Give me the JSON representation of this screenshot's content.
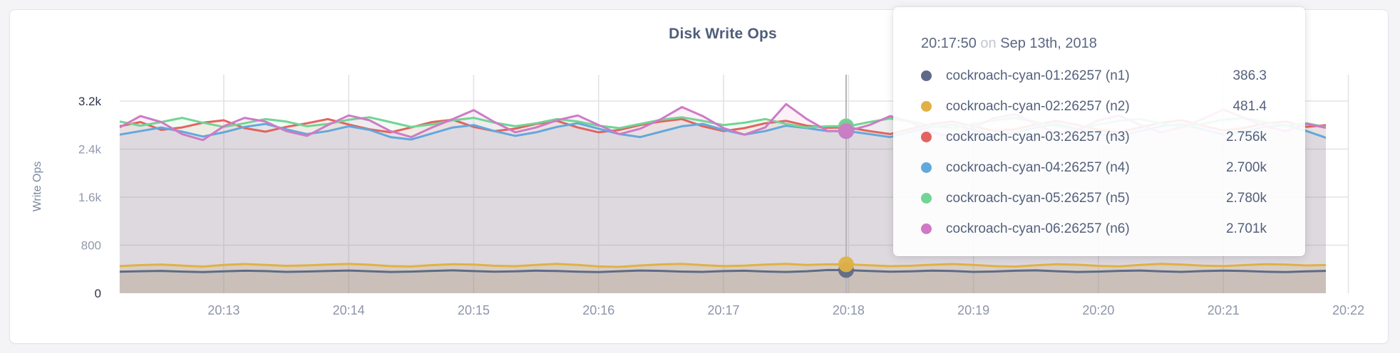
{
  "accent_colors": {
    "page_bg": "#f4f4f6",
    "card_bg": "#ffffff",
    "card_border": "#e5e5e9",
    "title_text": "#4f5e7b",
    "axis_tick_mid": "#9199ac",
    "axis_tick_emph": "#2d3347",
    "x_tick_text": "#8d95a9",
    "axis_title_text": "#7b87a1",
    "gridline": "#e3e3e7",
    "hover_guideline": "#b5b5ba",
    "tooltip_text": "#54607c",
    "tooltip_muted": "#c3c7cf"
  },
  "tooltip": {
    "time": "20:17:50",
    "on_word": "on",
    "date": "Sep 13th, 2018",
    "values_display": [
      "386.3",
      "481.4",
      "2.756k",
      "2.700k",
      "2.780k",
      "2.701k"
    ]
  },
  "chart_data": {
    "type": "line",
    "title": "Disk Write Ops",
    "xlabel": "",
    "ylabel": "Write Ops",
    "ylim": [
      0,
      3200
    ],
    "grid": true,
    "x_start": "20:12:10",
    "x_end": "20:21:50",
    "x_step_seconds": 10,
    "x_ticks": [
      "20:13",
      "20:14",
      "20:15",
      "20:16",
      "20:17",
      "20:18",
      "20:19",
      "20:20",
      "20:21",
      "20:22"
    ],
    "y_ticks": [
      {
        "label": "0",
        "value": 0,
        "emph": true
      },
      {
        "label": "800",
        "value": 800,
        "emph": false
      },
      {
        "label": "1.6k",
        "value": 1600,
        "emph": false
      },
      {
        "label": "2.4k",
        "value": 2400,
        "emph": false
      },
      {
        "label": "3.2k",
        "value": 3200,
        "emph": true
      }
    ],
    "hover_time": "20:17:50",
    "hover_values": [
      386.3,
      481.4,
      2756,
      2700,
      2780,
      2701
    ],
    "series": [
      {
        "name": "cockroach-cyan-01:26257 (n1)",
        "color": "#5e6a87",
        "fill_opacity": 0.18,
        "values": [
          358,
          366,
          372,
          360,
          352,
          364,
          374,
          368,
          356,
          362,
          370,
          378,
          366,
          354,
          360,
          372,
          380,
          368,
          358,
          364,
          376,
          370,
          358,
          352,
          366,
          378,
          372,
          360,
          356,
          368,
          374,
          362,
          354,
          366,
          386.3,
          384,
          370,
          358,
          364,
          376,
          370,
          356,
          362,
          374,
          380,
          366,
          354,
          360,
          372,
          378,
          364,
          356,
          368,
          376,
          370,
          358,
          352,
          364,
          372
        ]
      },
      {
        "name": "cockroach-cyan-02:26257 (n2)",
        "color": "#e0b145",
        "fill_opacity": 0.22,
        "values": [
          452,
          468,
          476,
          460,
          444,
          470,
          486,
          472,
          456,
          464,
          478,
          490,
          474,
          452,
          446,
          468,
          484,
          476,
          458,
          450,
          472,
          488,
          470,
          446,
          438,
          462,
          480,
          490,
          468,
          452,
          460,
          476,
          488,
          472,
          481.4,
          480,
          466,
          450,
          458,
          474,
          486,
          470,
          452,
          444,
          466,
          482,
          474,
          456,
          448,
          470,
          488,
          478,
          460,
          452,
          468,
          484,
          476,
          462,
          470
        ]
      },
      {
        "name": "cockroach-cyan-03:26257 (n3)",
        "color": "#e2635f",
        "fill_opacity": 0.1,
        "values": [
          2780,
          2850,
          2720,
          2760,
          2840,
          2880,
          2750,
          2690,
          2770,
          2830,
          2900,
          2810,
          2730,
          2680,
          2760,
          2850,
          2890,
          2770,
          2700,
          2740,
          2820,
          2870,
          2760,
          2680,
          2720,
          2800,
          2860,
          2900,
          2780,
          2700,
          2750,
          2830,
          2870,
          2790,
          2756,
          2760,
          2700,
          2650,
          2740,
          2820,
          2860,
          2780,
          2700,
          2730,
          2810,
          2870,
          2800,
          2720,
          2680,
          2760,
          2840,
          2880,
          2790,
          2710,
          2750,
          2830,
          2860,
          2770,
          2800
        ]
      },
      {
        "name": "cockroach-cyan-04:26257 (n4)",
        "color": "#63a8db",
        "fill_opacity": 0.1,
        "values": [
          2640,
          2700,
          2760,
          2690,
          2610,
          2680,
          2770,
          2820,
          2730,
          2650,
          2700,
          2780,
          2720,
          2600,
          2560,
          2660,
          2760,
          2800,
          2700,
          2620,
          2680,
          2770,
          2830,
          2740,
          2650,
          2600,
          2690,
          2780,
          2820,
          2720,
          2640,
          2700,
          2790,
          2750,
          2700,
          2698,
          2650,
          2600,
          2690,
          2770,
          2810,
          2720,
          2630,
          2670,
          2760,
          2820,
          2740,
          2650,
          2610,
          2700,
          2780,
          2820,
          2730,
          2640,
          2690,
          2770,
          2800,
          2700,
          2580
        ]
      },
      {
        "name": "cockroach-cyan-05:26257 (n5)",
        "color": "#72d495",
        "fill_opacity": 0.1,
        "values": [
          2860,
          2790,
          2850,
          2920,
          2840,
          2770,
          2830,
          2900,
          2860,
          2780,
          2820,
          2890,
          2930,
          2850,
          2770,
          2810,
          2880,
          2920,
          2840,
          2780,
          2830,
          2900,
          2860,
          2790,
          2750,
          2820,
          2890,
          2930,
          2870,
          2800,
          2840,
          2900,
          2820,
          2760,
          2780,
          2782,
          2850,
          2910,
          2860,
          2790,
          2750,
          2820,
          2880,
          2920,
          2850,
          2780,
          2740,
          2810,
          2870,
          2900,
          2830,
          2770,
          2820,
          2890,
          2920,
          2850,
          2790,
          2830,
          2760
        ]
      },
      {
        "name": "cockroach-cyan-06:26257 (n6)",
        "color": "#cf7ac6",
        "fill_opacity": 0.1,
        "values": [
          2760,
          2950,
          2850,
          2650,
          2550,
          2780,
          2920,
          2860,
          2700,
          2620,
          2800,
          2960,
          2880,
          2700,
          2600,
          2760,
          2900,
          3050,
          2850,
          2680,
          2760,
          2880,
          2960,
          2800,
          2650,
          2740,
          2900,
          3100,
          2950,
          2750,
          2640,
          2760,
          3150,
          2900,
          2701,
          2705,
          2800,
          2950,
          2850,
          2680,
          2600,
          2760,
          2920,
          2980,
          2820,
          2660,
          2720,
          2880,
          2960,
          2800,
          2680,
          2760,
          2900,
          3060,
          2920,
          2780,
          2700,
          2820,
          2750
        ]
      }
    ]
  }
}
